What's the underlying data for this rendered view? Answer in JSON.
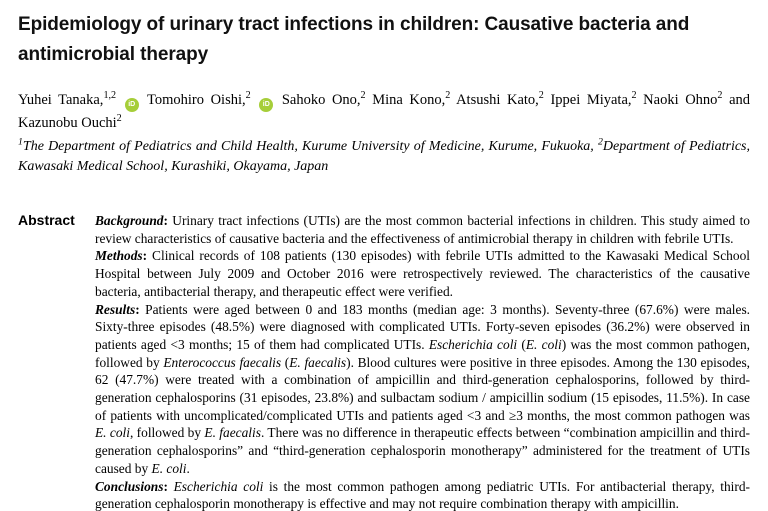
{
  "colors": {
    "background": "#FFFFFF",
    "text": "#000000",
    "orcid_green": "#A6CE39"
  },
  "icons": {
    "orcid_glyph": "iD"
  },
  "article": {
    "title": "Epidemiology of urinary tract infections in children: Causative bacteria and antimicrobial therapy",
    "authors_segments": [
      {
        "t": "Yuhei Tanaka,",
        "s": "n"
      },
      {
        "t": "1,2",
        "s": "sup"
      },
      {
        "t": " ",
        "s": "n"
      },
      {
        "s": "orcid"
      },
      {
        "t": " Tomohiro Oishi,",
        "s": "n"
      },
      {
        "t": "2",
        "s": "sup"
      },
      {
        "t": " ",
        "s": "n"
      },
      {
        "s": "orcid"
      },
      {
        "t": " Sahoko Ono,",
        "s": "n"
      },
      {
        "t": "2",
        "s": "sup"
      },
      {
        "t": " Mina Kono,",
        "s": "n"
      },
      {
        "t": "2",
        "s": "sup"
      },
      {
        "t": " Atsushi Kato,",
        "s": "n"
      },
      {
        "t": "2",
        "s": "sup"
      },
      {
        "t": " Ippei Miyata,",
        "s": "n"
      },
      {
        "t": "2",
        "s": "sup"
      },
      {
        "t": " Naoki Ohno",
        "s": "n"
      },
      {
        "t": "2",
        "s": "sup"
      },
      {
        "t": " and Kazunobu Ouchi",
        "s": "n"
      },
      {
        "t": "2",
        "s": "sup"
      }
    ],
    "affiliations_segments": [
      {
        "t": "1",
        "s": "sup"
      },
      {
        "t": "The Department of Pediatrics and Child Health, Kurume University of Medicine, Kurume, Fukuoka, ",
        "s": "n"
      },
      {
        "t": "2",
        "s": "sup"
      },
      {
        "t": "Department of Pediatrics, Kawasaki Medical School, Kurashiki, Okayama, Japan",
        "s": "n"
      }
    ],
    "abstract": {
      "label": "Abstract",
      "paragraphs": [
        {
          "name": "background",
          "segments": [
            {
              "t": "Background",
              "s": "bi"
            },
            {
              "t": ": ",
              "s": "b"
            },
            {
              "t": "Urinary tract infections (UTIs) are the most common bacterial infections in children. This study aimed to review characteristics of causative bacteria and the effectiveness of antimicrobial therapy in children with febrile UTIs.",
              "s": "n"
            }
          ]
        },
        {
          "name": "methods",
          "segments": [
            {
              "t": "Methods",
              "s": "bi"
            },
            {
              "t": ": ",
              "s": "b"
            },
            {
              "t": "Clinical records of 108 patients (130 episodes) with febrile UTIs admitted to the Kawasaki Medical School Hospital between July 2009 and October 2016 were retrospectively reviewed. The characteristics of the causative bacteria, antibacterial therapy, and therapeutic effect were verified.",
              "s": "n"
            }
          ]
        },
        {
          "name": "results",
          "segments": [
            {
              "t": "Results",
              "s": "bi"
            },
            {
              "t": ": ",
              "s": "b"
            },
            {
              "t": "Patients were aged between 0 and 183 months (median age: 3 months). Seventy-three (67.6%) were males. Sixty-three episodes (48.5%) were diagnosed with complicated UTIs. Forty-seven episodes (36.2%) were observed in patients aged <3 months; 15 of them had complicated UTIs. ",
              "s": "n"
            },
            {
              "t": "Escherichia coli",
              "s": "i"
            },
            {
              "t": " (",
              "s": "n"
            },
            {
              "t": "E. coli",
              "s": "i"
            },
            {
              "t": ") was the most common pathogen, followed by ",
              "s": "n"
            },
            {
              "t": "Enterococcus faecalis",
              "s": "i"
            },
            {
              "t": " (",
              "s": "n"
            },
            {
              "t": "E. faecalis",
              "s": "i"
            },
            {
              "t": "). Blood cultures were positive in three episodes. Among the 130 episodes, 62 (47.7%) were treated with a combination of ampicillin and third-generation cephalosporins, followed by third-generation cephalosporins (31 episodes, 23.8%) and sulbactam sodium / ampicillin sodium (15 episodes, 11.5%). In case of patients with uncomplicated/complicated UTIs and patients aged <3 and ≥3 months, the most common pathogen was ",
              "s": "n"
            },
            {
              "t": "E. coli",
              "s": "i"
            },
            {
              "t": ", followed by ",
              "s": "n"
            },
            {
              "t": "E. faecalis",
              "s": "i"
            },
            {
              "t": ". There was no difference in therapeutic effects between “combination ampicillin and third-generation cephalosporins” and “third-generation cephalosporin monotherapy” administered for the treatment of UTIs caused by ",
              "s": "n"
            },
            {
              "t": "E. coli",
              "s": "i"
            },
            {
              "t": ".",
              "s": "n"
            }
          ]
        },
        {
          "name": "conclusions",
          "segments": [
            {
              "t": "Conclusions",
              "s": "bi"
            },
            {
              "t": ": ",
              "s": "b"
            },
            {
              "t": "Escherichia coli",
              "s": "i"
            },
            {
              "t": " is the most common pathogen among pediatric UTIs. For antibacterial therapy, third-generation cephalosporin monotherapy is effective and may not require combination therapy with ampicillin.",
              "s": "n"
            }
          ]
        }
      ]
    }
  }
}
